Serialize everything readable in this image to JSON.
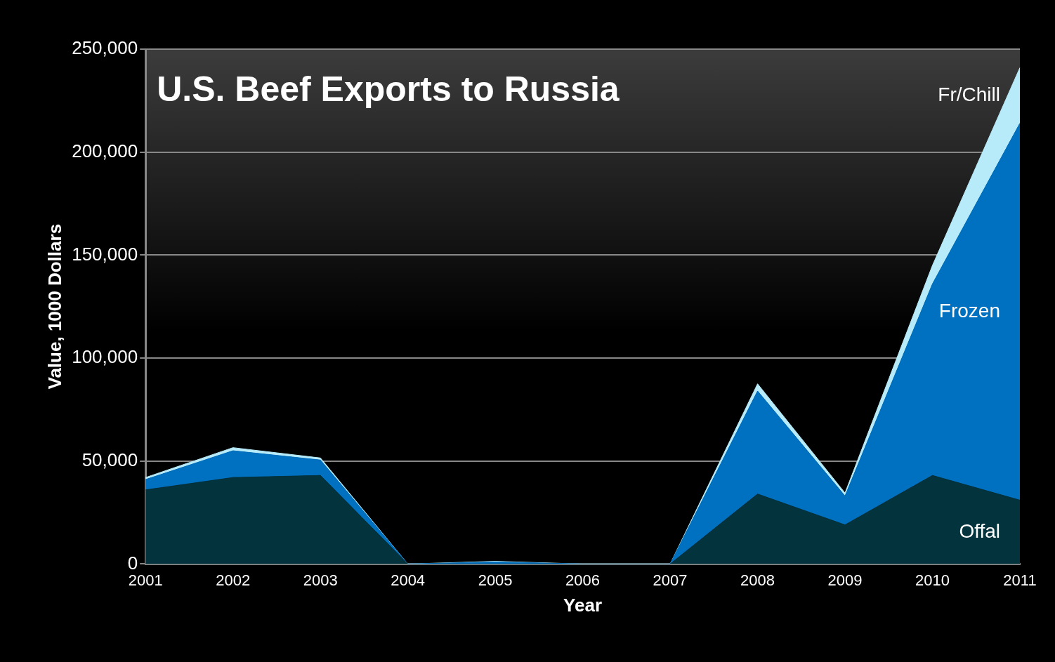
{
  "chart_data": {
    "type": "area",
    "title": "U.S. Beef Exports to Russia",
    "xlabel": "Year",
    "ylabel": "Value, 1000 Dollars",
    "categories": [
      "2001",
      "2002",
      "2003",
      "2004",
      "2005",
      "2006",
      "2007",
      "2008",
      "2009",
      "2010",
      "2011"
    ],
    "stacked": true,
    "series": [
      {
        "name": "Offal",
        "color": "#03333d",
        "values": [
          36000,
          42000,
          43000,
          0,
          0,
          0,
          0,
          34000,
          19000,
          43000,
          31000
        ]
      },
      {
        "name": "Frozen",
        "color": "#0070c0",
        "values": [
          5000,
          13000,
          7500,
          0,
          1000,
          0,
          0,
          50000,
          14000,
          93000,
          183000
        ]
      },
      {
        "name": "Fr/Chill",
        "color": "#b7ebf9",
        "values": [
          1000,
          1500,
          1000,
          0,
          300,
          0,
          0,
          3500,
          1500,
          9000,
          27000
        ]
      }
    ],
    "ylim": [
      0,
      250000
    ],
    "yticks": [
      0,
      {
        "value": 50000,
        "label": "50,000"
      },
      {
        "value": 100000,
        "label": "100,000"
      },
      {
        "value": 150000,
        "label": "150,000"
      },
      {
        "value": 200000,
        "label": "200,000"
      },
      {
        "value": 250000,
        "label": "250,000"
      }
    ],
    "grid": "y",
    "legend": false
  }
}
